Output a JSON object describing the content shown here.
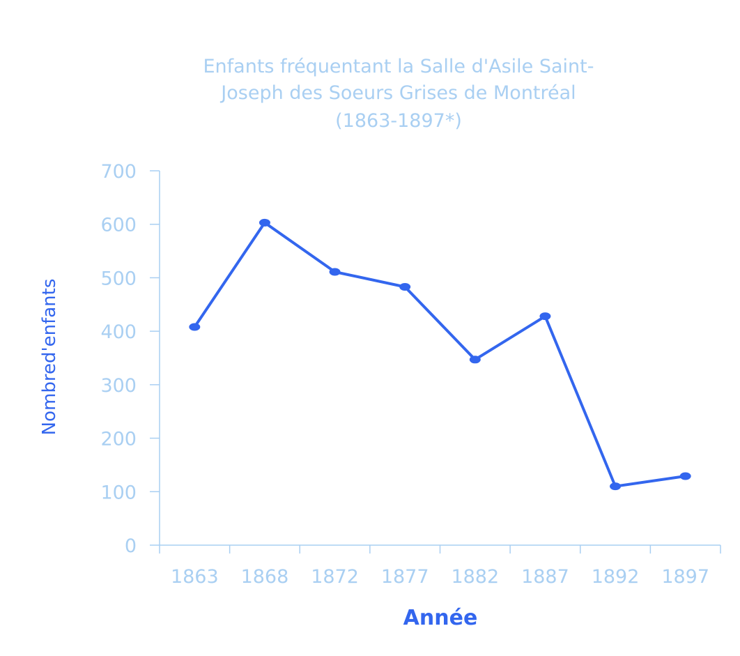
{
  "chart_data": {
    "type": "line",
    "title_lines": [
      "Enfants fréquentant la Salle d'Asile Saint-",
      "Joseph des Soeurs Grises de Montréal",
      "(1863-1897*)"
    ],
    "xlabel": "Année",
    "ylabel": "Nombred'enfants",
    "categories": [
      "1863",
      "1868",
      "1872",
      "1877",
      "1882",
      "1887",
      "1892",
      "1897"
    ],
    "values": [
      408,
      603,
      511,
      483,
      347,
      428,
      110,
      129
    ],
    "ylim": [
      0,
      700
    ],
    "yticks": [
      "0",
      "100",
      "200",
      "300",
      "400",
      "500",
      "600",
      "700"
    ],
    "grid": false,
    "colors": {
      "line": "#3366ee",
      "axis": "#a9cff2",
      "text": "#a9cff2",
      "label": "#3366ee"
    }
  }
}
